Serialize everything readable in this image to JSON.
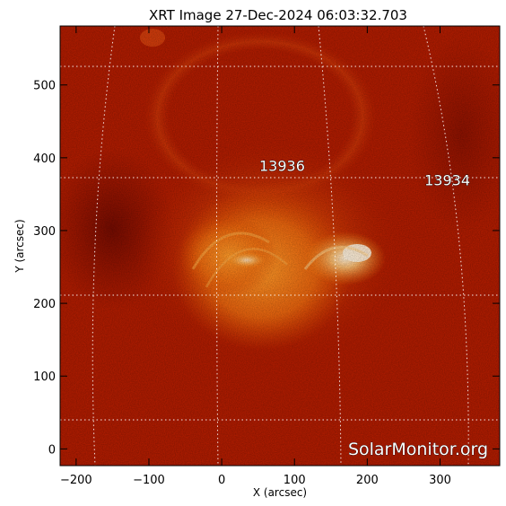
{
  "chart_data": {
    "type": "heatmap",
    "title": "XRT Image 27-Dec-2024 06:03:32.703",
    "xlabel": "X (arcsec)",
    "ylabel": "Y (arcsec)",
    "xlim": [
      -222,
      382
    ],
    "ylim": [
      -23,
      581
    ],
    "xticks": [
      -200,
      -100,
      0,
      100,
      200,
      300
    ],
    "yticks": [
      0,
      100,
      200,
      300,
      400,
      500
    ],
    "xtick_labels": [
      "−200",
      "−100",
      "0",
      "100",
      "200",
      "300"
    ],
    "ytick_labels": [
      "0",
      "100",
      "200",
      "300",
      "400",
      "500"
    ],
    "grid": "dotted heliographic grid",
    "active_regions": [
      {
        "label": "13936",
        "x": 83,
        "y": 382
      },
      {
        "label": "13934",
        "x": 310,
        "y": 362
      }
    ],
    "colormap": [
      "#5a0500",
      "#b21c00",
      "#e04a00",
      "#ff8c10",
      "#ffe0b0"
    ]
  },
  "watermark": "SolarMonitor.org"
}
